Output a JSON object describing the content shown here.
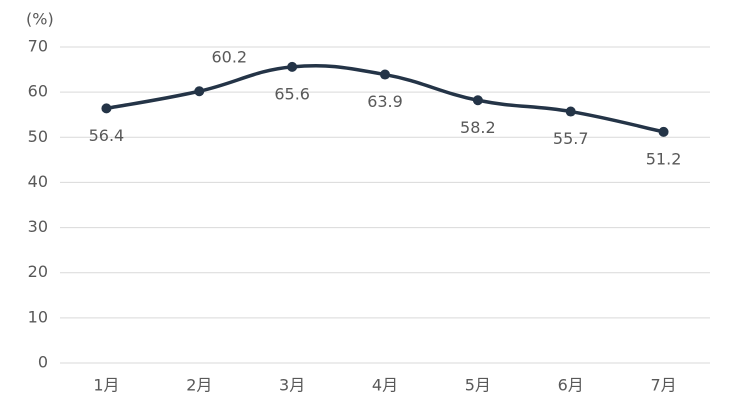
{
  "chart_data": {
    "type": "line",
    "y_label": "(%)",
    "categories": [
      "1月",
      "2月",
      "3月",
      "4月",
      "5月",
      "6月",
      "7月"
    ],
    "values": [
      56.4,
      60.2,
      65.6,
      63.9,
      58.2,
      55.7,
      51.2
    ],
    "color": "#243447",
    "ylim": [
      0,
      70
    ],
    "yticks": [
      0,
      10,
      20,
      30,
      40,
      50,
      60,
      70
    ],
    "grid": true
  }
}
